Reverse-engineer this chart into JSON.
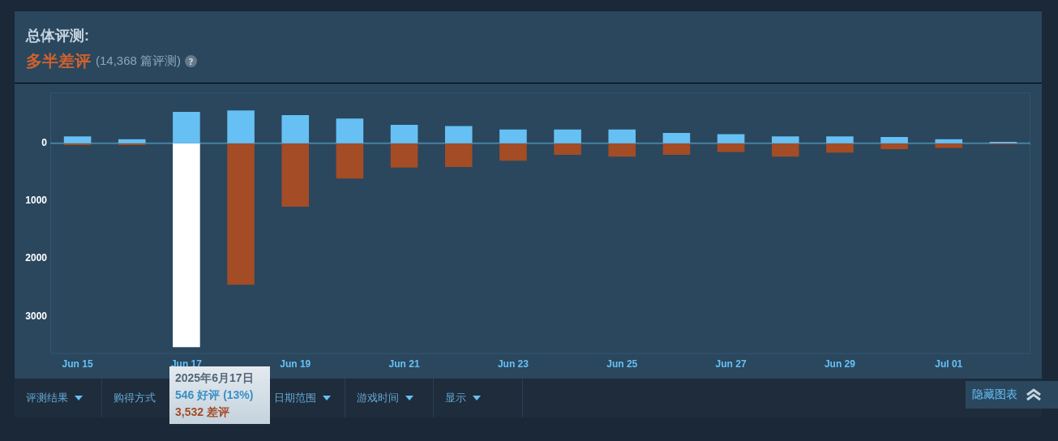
{
  "chart_data": {
    "type": "bar",
    "title": "总体评测:",
    "subtitle": "多半差评",
    "categories": [
      "Jun 15",
      null,
      "Jun 17",
      null,
      "Jun 19",
      null,
      "Jun 21",
      null,
      "Jun 23",
      null,
      "Jun 25",
      null,
      "Jun 27",
      null,
      "Jun 29",
      null,
      "Jul 01",
      null
    ],
    "series": [
      {
        "color": "#66c0f4",
        "values": [
          120,
          70,
          546,
          570,
          490,
          430,
          320,
          300,
          240,
          240,
          240,
          180,
          160,
          120,
          120,
          110,
          70,
          25
        ]
      },
      {
        "color": "#a34c25",
        "colors": [
          null,
          null,
          "#ffffff",
          null,
          null,
          null,
          null,
          null,
          null,
          null,
          null,
          null,
          null,
          null,
          null,
          null,
          null,
          null
        ],
        "values": [
          -30,
          -30,
          -3532,
          -2450,
          -1100,
          -610,
          -420,
          -410,
          -300,
          -200,
          -230,
          -200,
          -150,
          -230,
          -160,
          -100,
          -80,
          -15
        ]
      }
    ],
    "stacked": true,
    "ylim": [
      -3650,
      880
    ],
    "yticks": [
      0,
      {
        "value": -1000,
        "label": "1000"
      },
      {
        "value": -2000,
        "label": "2000"
      },
      {
        "value": -3000,
        "label": "3000"
      }
    ],
    "grid": false,
    "legend": false,
    "ref_lines": [
      {
        "axis": "y",
        "value": 0,
        "color": "#4582a5"
      }
    ],
    "annotations": [
      "(14,368 篇评测)",
      "?",
      "2025年6月17日",
      "546 好评 (13%)",
      "3,532 差评",
      "评测结果",
      "购得方式",
      "日期范围",
      "游戏时间",
      "显示",
      "隐藏图表"
    ]
  }
}
